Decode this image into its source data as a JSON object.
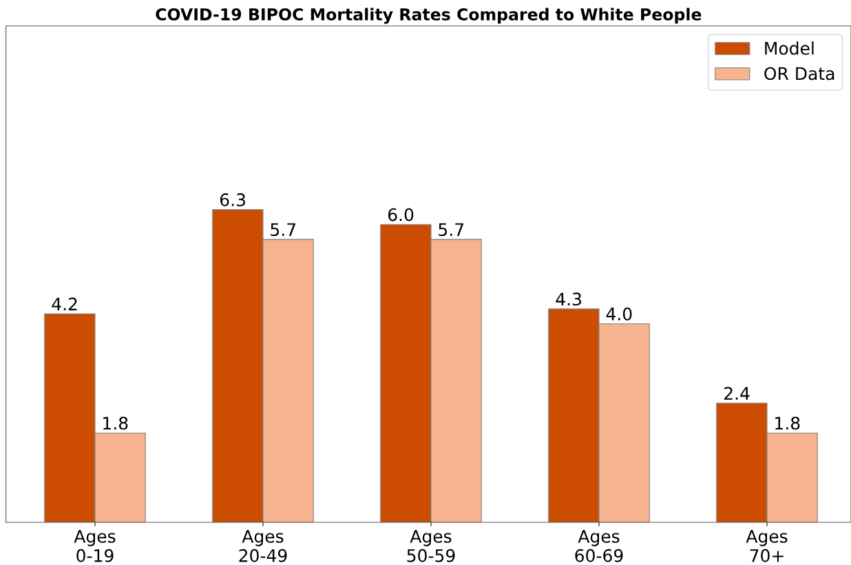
{
  "chart_data": {
    "type": "bar",
    "title": "COVID-19 BIPOC Mortality Rates Compared to White People",
    "categories": [
      "Ages\n0-19",
      "Ages\n20-49",
      "Ages\n50-59",
      "Ages\n60-69",
      "Ages\n70+"
    ],
    "series": [
      {
        "name": "Model",
        "color": "#cc4c02",
        "values": [
          4.2,
          6.3,
          6.0,
          4.3,
          2.4
        ],
        "value_labels": [
          "4.2",
          "6.3",
          "6.0",
          "4.3",
          "2.4"
        ]
      },
      {
        "name": "OR Data",
        "color": "#f6b38e",
        "values": [
          1.8,
          5.7,
          5.7,
          4.0,
          1.8
        ],
        "value_labels": [
          "1.8",
          "5.7",
          "5.7",
          "4.0",
          "1.8"
        ]
      }
    ],
    "ylim": [
      0,
      10
    ],
    "tick_labels": "x",
    "legend": "top right",
    "grid": false
  }
}
